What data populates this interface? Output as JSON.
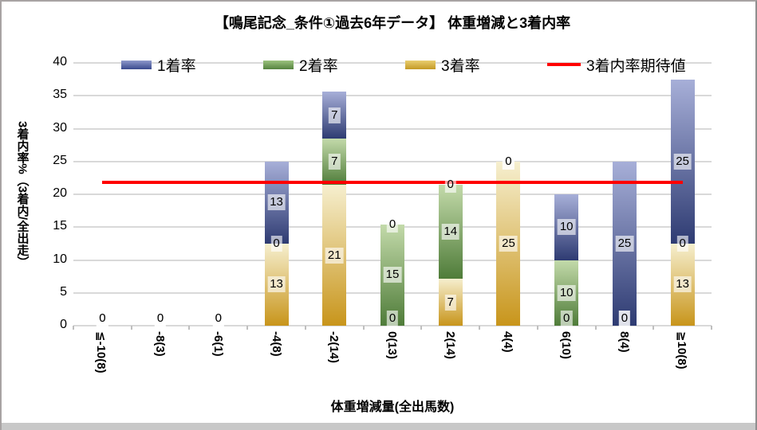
{
  "chart_data": {
    "type": "bar",
    "stacked": true,
    "title": "【鳴尾記念_条件①過去6年データ】 体重増減と3着内率",
    "xlabel": "体重増減量(全出馬数)",
    "ylabel": "3着内率%（3着内/全出走）",
    "ylim": [
      0,
      40
    ],
    "yticks": [
      0,
      5,
      10,
      15,
      20,
      25,
      30,
      35,
      40
    ],
    "grid": true,
    "legend_position": "top",
    "categories": [
      "≦-10(8)",
      "-8(3)",
      "-6(1)",
      "-4(8)",
      "-2(14)",
      "0(13)",
      "2(14)",
      "4(4)",
      "6(10)",
      "8(4)",
      "≧10(8)"
    ],
    "series": [
      {
        "name": "3着率",
        "stack_order": 0,
        "color_top": "#F6EFCF",
        "color_bottom": "#C8951B",
        "values": [
          0,
          0,
          0,
          12.5,
          21.4,
          0,
          7.1,
          25,
          0,
          0,
          12.5
        ],
        "labels": [
          "0",
          "0",
          "0",
          "13",
          "21",
          "0",
          "7",
          "25",
          "0",
          "0",
          "13"
        ]
      },
      {
        "name": "2着率",
        "stack_order": 1,
        "color_top": "#C3DAAA",
        "color_bottom": "#4F7C39",
        "values": [
          0,
          0,
          0,
          0,
          7.1,
          15.4,
          14.3,
          0,
          10,
          0,
          0
        ],
        "labels": [
          "0",
          "0",
          "0",
          "0",
          "7",
          "15",
          "14",
          "0",
          "10",
          "0",
          "0"
        ]
      },
      {
        "name": "1着率",
        "stack_order": 2,
        "color_top": "#A7AFD8",
        "color_bottom": "#2E3B72",
        "values": [
          0,
          0,
          0,
          12.5,
          7.1,
          0,
          0,
          0,
          10,
          25,
          25
        ],
        "labels": [
          "0",
          "0",
          "0",
          "13",
          "7",
          "0",
          "0",
          "0",
          "10",
          "25",
          "25"
        ]
      }
    ],
    "expected_line": {
      "name": "3着内率期待値",
      "value": 21.8,
      "color": "#FF0000"
    },
    "legend_items": [
      {
        "label": "1着率",
        "type": "swatch"
      },
      {
        "label": "2着率",
        "type": "swatch"
      },
      {
        "label": "3着率",
        "type": "swatch"
      },
      {
        "label": "3着内率期待値",
        "type": "line"
      }
    ],
    "colors": {
      "win": "#3A4A8E",
      "place2": "#55833F",
      "place3": "#C49A25",
      "expected_line": "#FF0000",
      "gridline": "#D9D9D9"
    }
  }
}
